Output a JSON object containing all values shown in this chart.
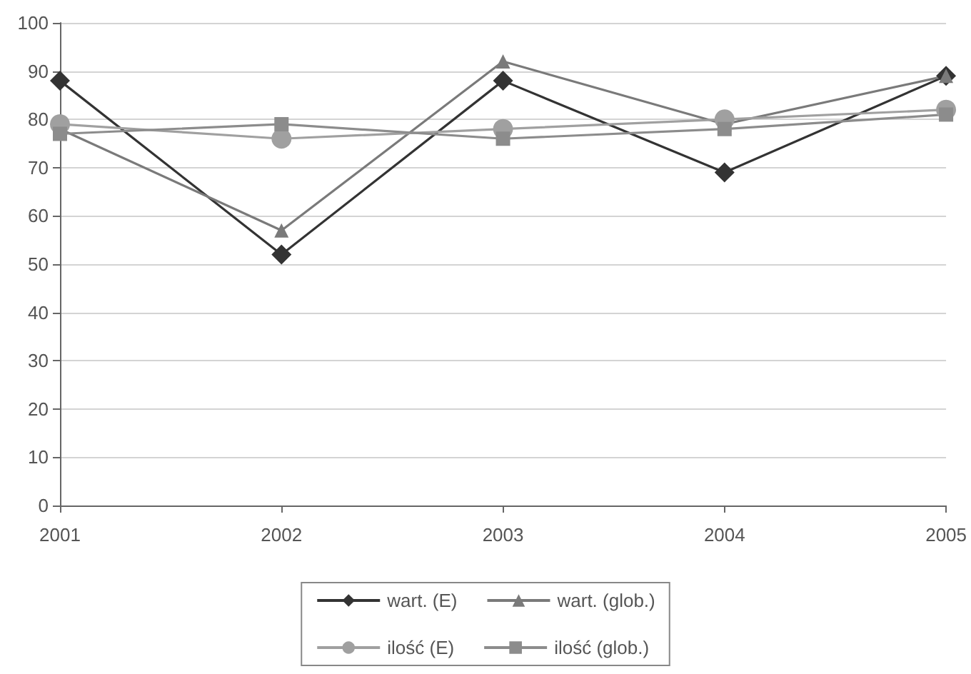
{
  "chart_data": {
    "type": "line",
    "categories": [
      "2001",
      "2002",
      "2003",
      "2004",
      "2005"
    ],
    "series": [
      {
        "name": "wart. (E)",
        "color": "#333333",
        "marker": "diamond",
        "values": [
          88,
          52,
          88,
          69,
          89
        ]
      },
      {
        "name": "wart. (glob.)",
        "color": "#7a7a7a",
        "marker": "triangle",
        "values": [
          78,
          57,
          92,
          79,
          89
        ]
      },
      {
        "name": "ilość (E)",
        "color": "#a0a0a0",
        "marker": "circle",
        "values": [
          79,
          76,
          78,
          80,
          82
        ]
      },
      {
        "name": "ilość (glob.)",
        "color": "#8c8c8c",
        "marker": "square",
        "values": [
          77,
          79,
          76,
          78,
          81
        ]
      }
    ],
    "ylim": [
      0,
      100
    ],
    "yticks": [
      0,
      10,
      20,
      30,
      40,
      50,
      60,
      70,
      80,
      90,
      100
    ],
    "grid": "y",
    "legend": "bottom"
  }
}
